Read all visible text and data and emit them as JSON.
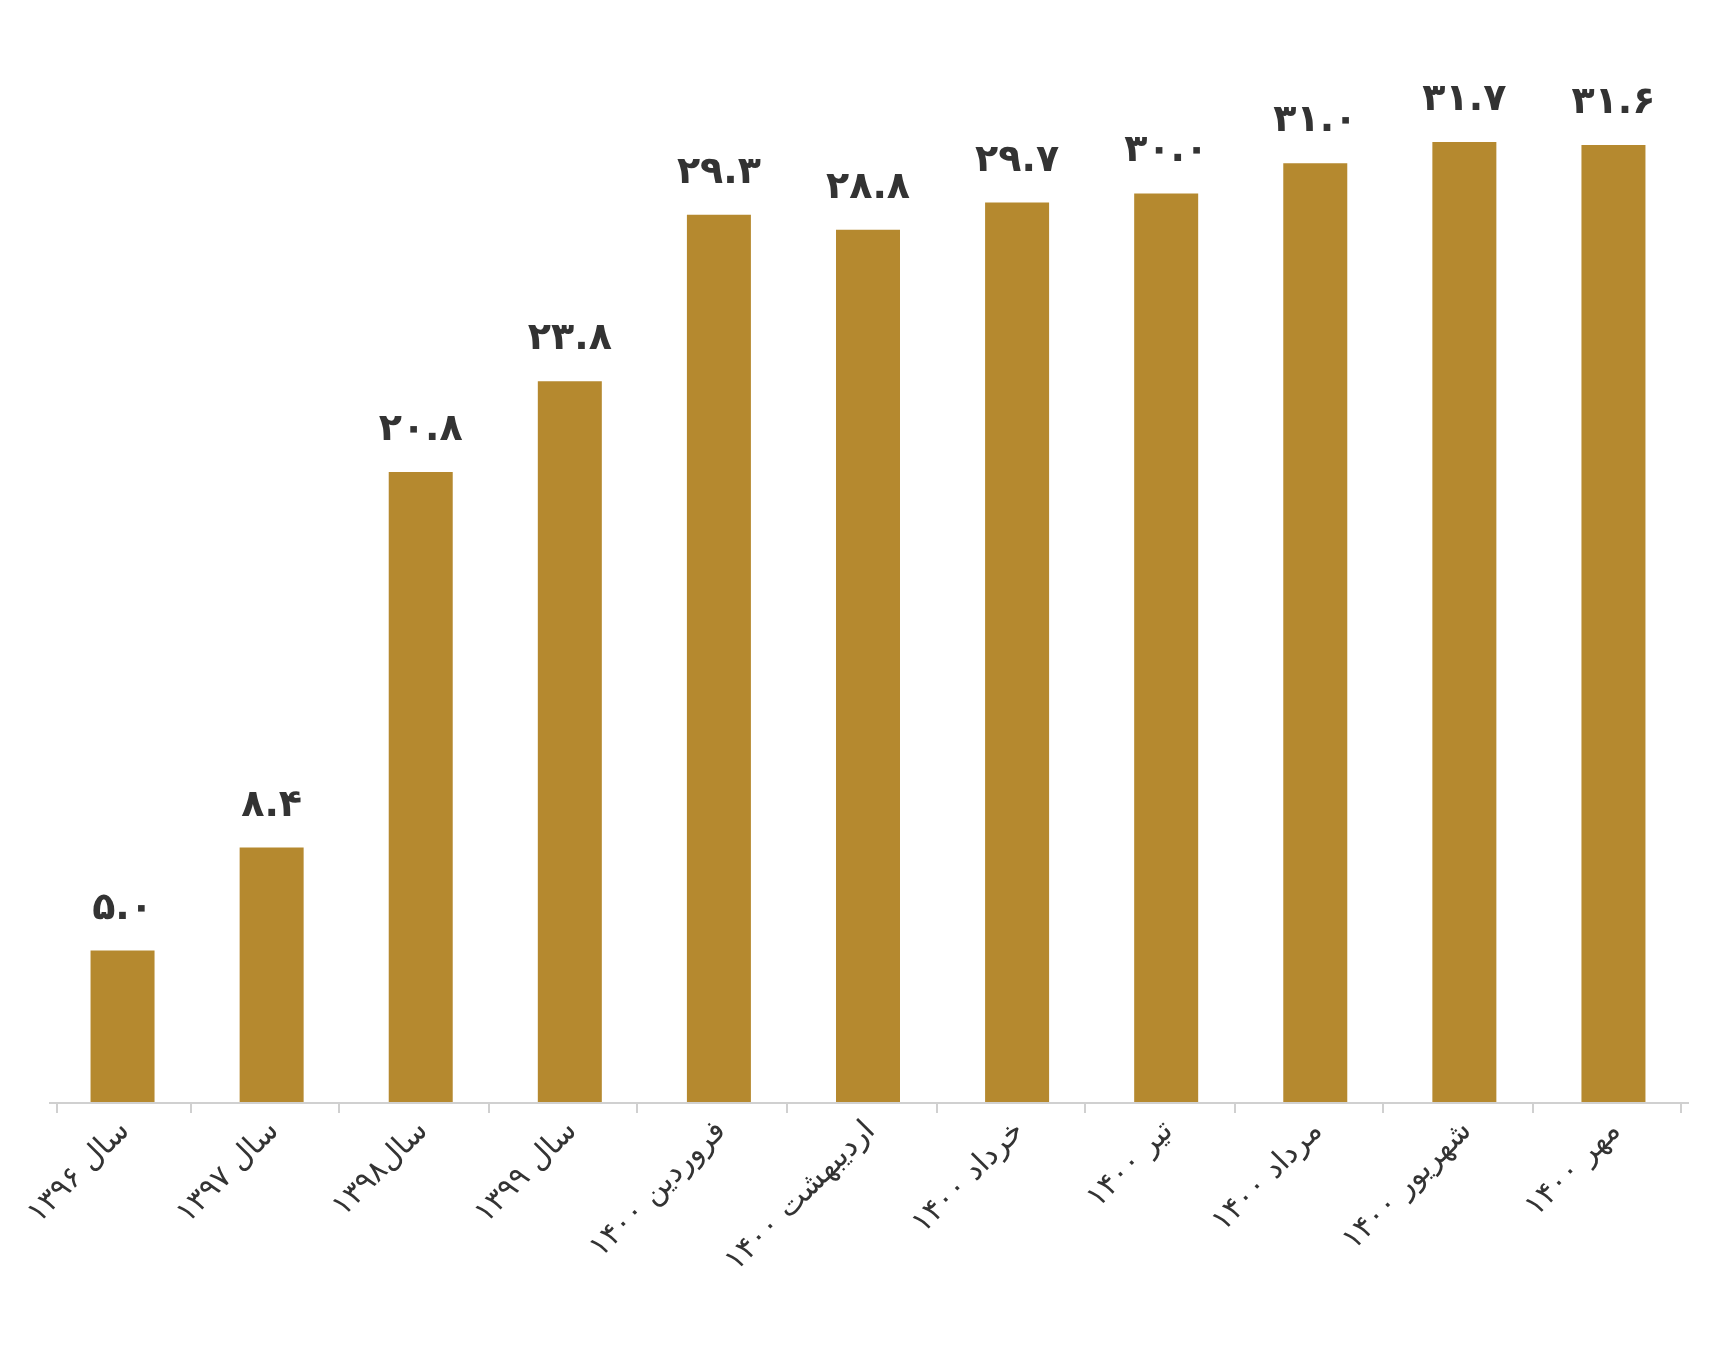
{
  "chart_data": {
    "type": "bar",
    "categories": [
      "سال ۱۳۹۶",
      "سال ۱۳۹۷",
      "سال۱۳۹۸",
      "سال ۱۳۹۹",
      "فروردین ۱۴۰۰",
      "اردیبهشت ۱۴۰۰",
      "خرداد ۱۴۰۰",
      "تیر ۱۴۰۰",
      "مرداد ۱۴۰۰",
      "شهریور ۱۴۰۰",
      "مهر ۱۴۰۰"
    ],
    "values": [
      5.0,
      8.4,
      20.8,
      23.8,
      29.3,
      28.8,
      29.7,
      30.0,
      31.0,
      31.7,
      31.6
    ],
    "value_labels": [
      "۵.۰",
      "۸.۴",
      "۲۰.۸",
      "۲۳.۸",
      "۲۹.۳",
      "۲۸.۸",
      "۲۹.۷",
      "۳۰.۰",
      "۳۱.۰",
      "۳۱.۷",
      "۳۱.۶"
    ],
    "color": "#b5892f"
  }
}
